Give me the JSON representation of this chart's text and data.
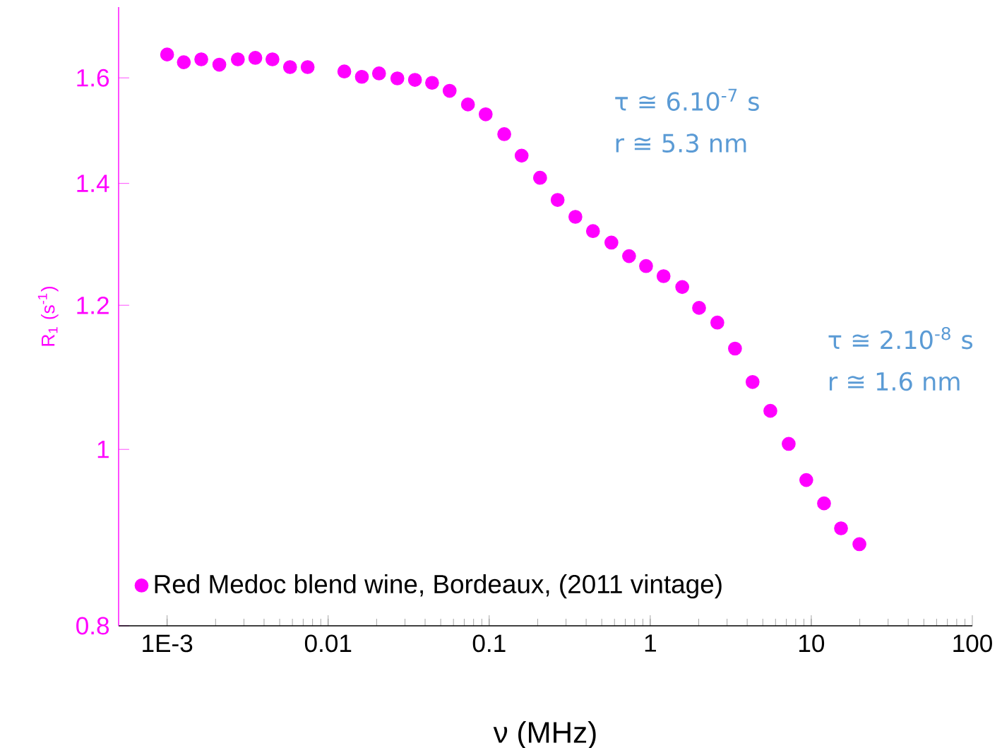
{
  "chart_data": {
    "type": "scatter",
    "xlabel": "ν (MHz)",
    "ylabel": "R$_{1}$ (s$^{-1}$)",
    "log": "xy",
    "grid": false,
    "legend": "bottom left",
    "marker": "circle",
    "xlim": [
      0.0005,
      100
    ],
    "ylim": [
      0.8,
      1.75
    ],
    "xticks": [
      {
        "value": 0.001,
        "label": "1E-3"
      },
      0.01,
      0.1,
      1,
      10,
      100
    ],
    "yticks": [
      0.8,
      1,
      1.2,
      1.4,
      1.6
    ],
    "annotations": [
      "τ ≅ 6.10$^{-7}$ s",
      "r ≅ 5.3 nm",
      "τ ≅ 2.10$^{-8}$ s",
      "r ≅ 1.6 nm"
    ],
    "series": [
      {
        "name": "Red Medoc blend wine, Bordeaux, (2011 vintage)",
        "color": "#ff00ff",
        "x": [
          0.001,
          0.00127,
          0.00163,
          0.00211,
          0.00275,
          0.00353,
          0.00451,
          0.0058,
          0.00746,
          0.0126,
          0.0162,
          0.0207,
          0.0269,
          0.0346,
          0.0442,
          0.0568,
          0.0738,
          0.0951,
          0.124,
          0.159,
          0.207,
          0.266,
          0.343,
          0.441,
          0.574,
          0.739,
          0.942,
          1.21,
          1.58,
          2.01,
          2.61,
          3.36,
          4.32,
          5.57,
          7.24,
          9.31,
          12.0,
          15.3,
          19.9
        ],
        "values": [
          1.648,
          1.632,
          1.638,
          1.627,
          1.638,
          1.641,
          1.638,
          1.622,
          1.622,
          1.613,
          1.602,
          1.609,
          1.599,
          1.596,
          1.59,
          1.574,
          1.547,
          1.528,
          1.49,
          1.45,
          1.41,
          1.371,
          1.342,
          1.318,
          1.299,
          1.277,
          1.261,
          1.245,
          1.228,
          1.196,
          1.174,
          1.136,
          1.089,
          1.05,
          1.007,
          0.962,
          0.934,
          0.905,
          0.887
        ]
      }
    ]
  }
}
